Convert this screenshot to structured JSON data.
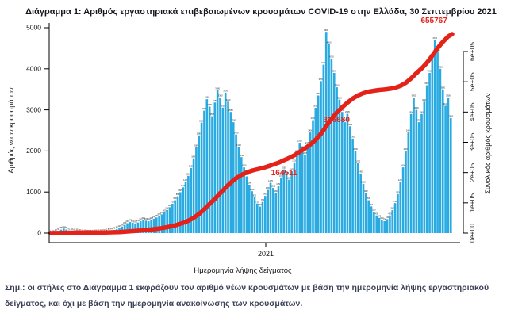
{
  "page": {
    "title": "Διάγραμμα 1: Αριθμός εργαστηριακά επιβεβαιωμένων κρουσμάτων COVID-19 στην Ελλάδα, 30 Σεπτεμβρίου 2021",
    "footnote": "Σημ.:  οι στήλες στο Διάγραμμα 1 εκφράζουν τον αριθμό νέων κρουσμάτων με βάση την ημερομηνία λήψης εργαστηριακού δείγματος, και όχι με βάση την ημερομηνία ανακοίνωσης των κρουσμάτων."
  },
  "chart_data": {
    "type": "bar",
    "title": "Διάγραμμα 1: Αριθμός εργαστηριακά επιβεβαιωμένων κρουσμάτων COVID-19 στην Ελλάδα, 30 Σεπτεμβρίου 2021",
    "xlabel": "Ημερομηνία λήψης δείγματος",
    "ylabel_left": "Αριθμός νέων κρουσμάτων",
    "ylabel_right": "Συνολικός αριθμός κρουσμάτων",
    "x_ticks": [
      "2021"
    ],
    "left_ticks": [
      0,
      1000,
      2000,
      3000,
      4000,
      5000
    ],
    "right_ticks": [
      "0e+00",
      "1e+05",
      "2e+05",
      "3e+05",
      "4e+05",
      "5e+05",
      "6e+05"
    ],
    "ylim_left": [
      0,
      5000
    ],
    "ylim_right": [
      0,
      600000
    ],
    "bar_color": "#29abe2",
    "line_color": "#e3231a",
    "grid": false,
    "series": [
      {
        "name": "Αριθμός νέων κρουσμάτων",
        "type": "bar",
        "values": [
          6,
          14,
          28,
          50,
          85,
          112,
          88,
          62,
          48,
          42,
          36,
          30,
          24,
          19,
          15,
          12,
          14,
          18,
          22,
          27,
          33,
          41,
          52,
          64,
          78,
          95,
          125,
          160,
          200,
          240,
          270,
          252,
          235,
          258,
          290,
          325,
          302,
          288,
          318,
          348,
          380,
          415,
          455,
          505,
          560,
          630,
          715,
          800,
          895,
          995,
          1115,
          1245,
          1395,
          1585,
          1820,
          2085,
          2380,
          2690,
          2980,
          3260,
          3080,
          2845,
          3180,
          3480,
          3300,
          3055,
          3420,
          3200,
          2950,
          2700,
          2400,
          2100,
          1850,
          1600,
          1380,
          1180,
          1020,
          870,
          720,
          645,
          760,
          905,
          1050,
          1225,
          1100,
          980,
          1150,
          1355,
          1550,
          1420,
          1300,
          1505,
          1720,
          1950,
          2200,
          2050,
          1905,
          2150,
          2450,
          2750,
          3050,
          3350,
          3700,
          4100,
          4900,
          4600,
          4250,
          3900,
          3550,
          3250,
          2950,
          2700,
          2905,
          2600,
          2300,
          2000,
          1700,
          1450,
          1200,
          980,
          800,
          650,
          520,
          430,
          370,
          320,
          290,
          340,
          430,
          560,
          730,
          950,
          1250,
          1600,
          2000,
          2450,
          2900,
          3300,
          3000,
          2700,
          2900,
          3200,
          3600,
          3900,
          4300,
          4700,
          4400,
          4000,
          3500,
          3100,
          3300,
          2800
        ]
      },
      {
        "name": "Συνολικός αριθμός κρουσμάτων",
        "type": "line",
        "final_value": 655767,
        "annotations": [
          {
            "text": "164511",
            "x_frac": 0.583,
            "y": 228
          },
          {
            "text": "326680",
            "x_frac": 0.713,
            "y": 161
          },
          {
            "text": "655767",
            "x_frac": 0.955,
            "y": 36
          }
        ]
      }
    ]
  }
}
